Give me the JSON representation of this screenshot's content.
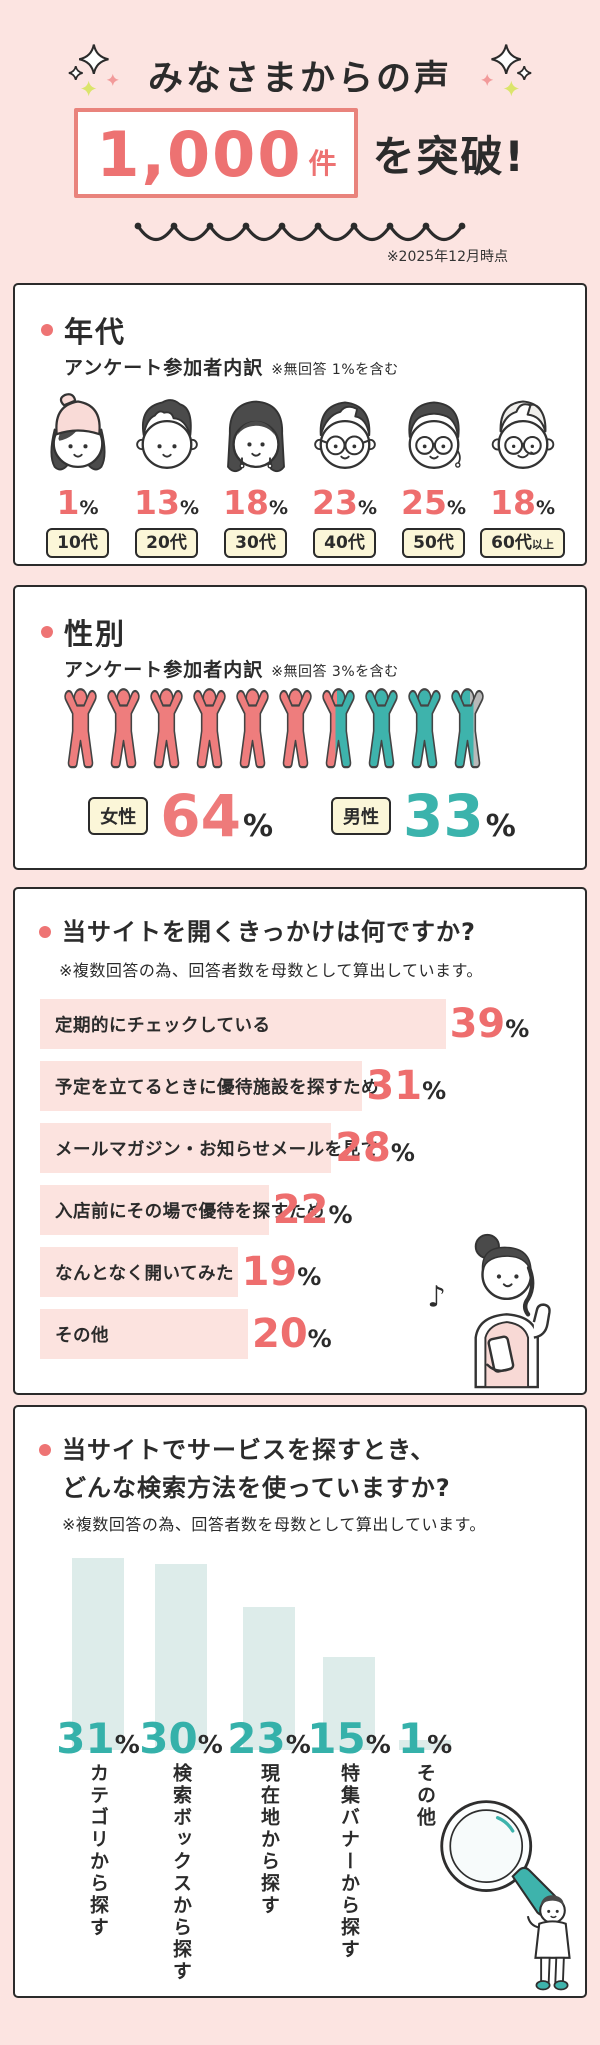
{
  "ui": {
    "percent_sign": "%"
  },
  "colors": {
    "background": "#fce4e1",
    "card_border": "#2b2b2b",
    "accent_red": "#ed7272",
    "percent_red": "#ee6e6e",
    "female_pink": "#ee7d7d",
    "male_teal": "#3eb3ac",
    "no_answer_gray": "#b9b9b9",
    "cream_label": "#fbf6d8",
    "hbar_pink": "#fce3df",
    "vbar_teal": "#ddecea"
  },
  "header": {
    "title": "みなさまからの声",
    "count": "1,000",
    "unit": "件",
    "suffix": "を突破!",
    "note": "※2025年12月時点"
  },
  "sections": {
    "age": {
      "title": "年代",
      "subtitle": "アンケート参加者内訳",
      "note": "※無回答 1%を含む",
      "face_types": [
        "teen-girl",
        "young-man",
        "woman-long-hair",
        "man-glasses",
        "woman-glasses",
        "senior-man"
      ]
    },
    "gender": {
      "title": "性別",
      "subtitle": "アンケート参加者内訳",
      "note": "※無回答 3%を含む"
    },
    "trigger": {
      "title": "当サイトを開くきっかけは何ですか?",
      "note": "※複数回答の為、回答者数を母数として算出しています。"
    },
    "search": {
      "title_line1": "当サイトでサービスを探すとき、",
      "title_line2": "どんな検索方法を使っていますか?",
      "note": "※複数回答の為、回答者数を母数として算出しています。"
    }
  },
  "chart_data": [
    {
      "type": "pictogram",
      "title": "年代(アンケート参加者内訳)",
      "note": "無回答 1%を含む",
      "categories": [
        "10代",
        "20代",
        "30代",
        "40代",
        "50代",
        "60代以上"
      ],
      "values": [
        1,
        13,
        18,
        23,
        25,
        18
      ],
      "unit": "%"
    },
    {
      "type": "pictogram",
      "title": "性別(アンケート参加者内訳)",
      "note": "無回答 3%を含む",
      "categories": [
        "女性",
        "男性"
      ],
      "values": [
        64,
        33
      ],
      "unit": "%",
      "colors": [
        "#ee7d7d",
        "#3eb3ac"
      ]
    },
    {
      "type": "bar",
      "orientation": "horizontal",
      "title": "当サイトを開くきっかけは何ですか?",
      "note": "複数回答の為、回答者数を母数として算出しています。",
      "categories": [
        "定期的にチェックしている",
        "予定を立てるときに優待施設を探すため",
        "メールマガジン・お知らせメールを見て",
        "入店前にその場で優待を探すため",
        "なんとなく開いてみた",
        "その他"
      ],
      "values": [
        39,
        31,
        28,
        22,
        19,
        20
      ],
      "unit": "%"
    },
    {
      "type": "bar",
      "orientation": "vertical",
      "title": "当サイトでサービスを探すとき、どんな検索方法を使っていますか?",
      "note": "複数回答の為、回答者数を母数として算出しています。",
      "categories": [
        "カテゴリから探す",
        "検索ボックスから探す",
        "現在地から探す",
        "特集バナーから探す",
        "その他"
      ],
      "values": [
        31,
        30,
        23,
        15,
        1
      ],
      "unit": "%"
    }
  ]
}
